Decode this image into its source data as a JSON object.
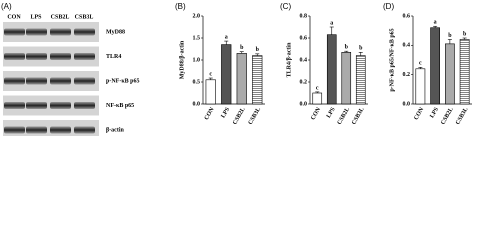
{
  "blot": {
    "panel_label": "(A)",
    "lanes": [
      "CON",
      "LPS",
      "CSB2L",
      "CSB3L"
    ],
    "proteins": [
      "MyD88",
      "TLR4",
      "p-NF-κB p65",
      "NF-κB p65",
      "β-actin"
    ]
  },
  "chart_data": [
    {
      "type": "bar",
      "panel_label": "(B)",
      "y_label": "MyD88/β-actin",
      "categories": [
        "CON",
        "LPS",
        "CSB2L",
        "CSB3L"
      ],
      "values": [
        0.55,
        1.35,
        1.15,
        1.1
      ],
      "errors": [
        0.04,
        0.08,
        0.04,
        0.04
      ],
      "annotations": [
        "c",
        "a",
        "b",
        "b"
      ],
      "colors": [
        "#ffffff",
        "#555555",
        "#aaaaaa",
        "#ffffff"
      ],
      "hatch": [
        false,
        false,
        false,
        true
      ],
      "ylim": [
        0,
        2
      ],
      "yticks": [
        {
          "value": 0,
          "label": "0.0"
        },
        {
          "value": 0.5,
          "label": "0.5"
        },
        {
          "value": 1,
          "label": "1.0"
        },
        {
          "value": 1.5,
          "label": "1.5"
        },
        {
          "value": 2,
          "label": "2.0"
        }
      ]
    },
    {
      "type": "bar",
      "panel_label": "(C)",
      "y_label": "TLR4/β-actin",
      "categories": [
        "CON",
        "LPS",
        "CSB2L",
        "CSB3L"
      ],
      "values": [
        0.1,
        0.63,
        0.47,
        0.44
      ],
      "errors": [
        0.01,
        0.07,
        0.01,
        0.03
      ],
      "annotations": [
        "c",
        "a",
        "b",
        "b"
      ],
      "colors": [
        "#ffffff",
        "#555555",
        "#aaaaaa",
        "#ffffff"
      ],
      "hatch": [
        false,
        false,
        false,
        true
      ],
      "ylim": [
        0,
        0.8
      ],
      "yticks": [
        {
          "value": 0,
          "label": "0.0"
        },
        0.2,
        0.4,
        0.6,
        0.8
      ]
    },
    {
      "type": "bar",
      "panel_label": "(D)",
      "y_label": "p-NF-κB p65/NF-κB p65",
      "categories": [
        "CON",
        "LPS",
        "CSB2L",
        "CSB3L"
      ],
      "values": [
        0.24,
        0.52,
        0.41,
        0.44
      ],
      "errors": [
        0.01,
        0.01,
        0.03,
        0.01
      ],
      "annotations": [
        "c",
        "a",
        "b",
        "b"
      ],
      "colors": [
        "#ffffff",
        "#555555",
        "#aaaaaa",
        "#ffffff"
      ],
      "hatch": [
        false,
        false,
        false,
        true
      ],
      "ylim": [
        0,
        0.6
      ],
      "yticks": [
        {
          "value": 0,
          "label": "0.0"
        },
        0.2,
        0.4,
        0.6
      ]
    }
  ]
}
